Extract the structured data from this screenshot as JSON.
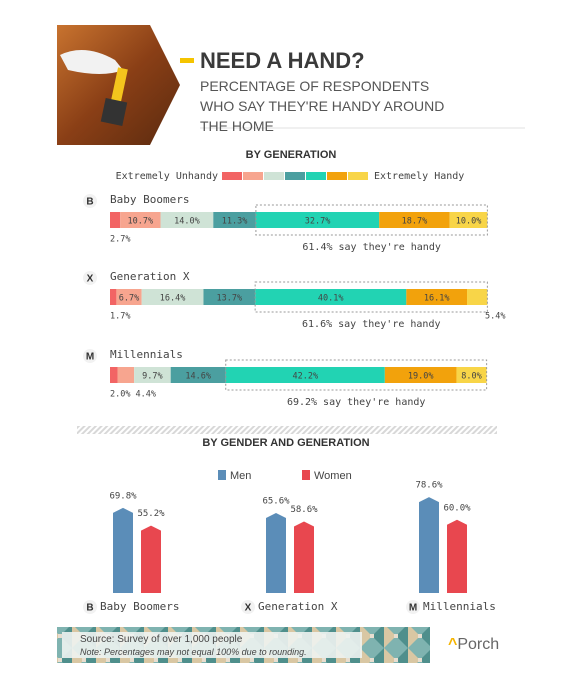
{
  "header": {
    "title": "NEED A HAND?",
    "subtitle": "PERCENTAGE OF RESPONDENTS WHO SAY THEY'RE HANDY AROUND THE HOME"
  },
  "chart_data": [
    {
      "type": "stacked-bar",
      "title": "BY GENERATION",
      "legend_low": "Extremely Unhandy",
      "legend_high": "Extremely Handy",
      "categories": [
        "Baby Boomers",
        "Generation X",
        "Millennials"
      ],
      "category_icons": [
        "B",
        "X",
        "M"
      ],
      "series": [
        {
          "color": "#f26464",
          "values": [
            2.7,
            1.7,
            2.0
          ],
          "value_labels": [
            "2.7%",
            "1.7%",
            "2.0%"
          ]
        },
        {
          "color": "#f7a58f",
          "values": [
            10.7,
            6.7,
            4.4
          ],
          "value_labels": [
            "10.7%",
            "6.7%",
            "4.4%"
          ]
        },
        {
          "color": "#cfe3d6",
          "values": [
            14.0,
            16.4,
            9.7
          ],
          "value_labels": [
            "14.0%",
            "16.4%",
            "9.7%"
          ]
        },
        {
          "color": "#4b9fa0",
          "values": [
            11.3,
            13.7,
            14.6
          ],
          "value_labels": [
            "11.3%",
            "13.7%",
            "14.6%"
          ]
        },
        {
          "color": "#22d3b3",
          "values": [
            32.7,
            40.1,
            42.2
          ],
          "value_labels": [
            "32.7%",
            "40.1%",
            "42.2%"
          ]
        },
        {
          "color": "#f2a20c",
          "values": [
            18.7,
            16.1,
            19.0
          ],
          "value_labels": [
            "18.7%",
            "16.1%",
            "19.0%"
          ]
        },
        {
          "color": "#f8d548",
          "values": [
            10.0,
            5.4,
            8.0
          ],
          "value_labels": [
            "10.0%",
            "5.4%",
            "8.0%"
          ]
        }
      ],
      "handy_labels": [
        "61.4% say they're handy",
        "61.6% say they're handy",
        "69.2% say they're handy"
      ]
    },
    {
      "type": "grouped-bar",
      "title": "BY GENDER AND GENERATION",
      "categories": [
        "Baby Boomers",
        "Generation X",
        "Millennials"
      ],
      "category_icons": [
        "B",
        "X",
        "M"
      ],
      "series": [
        {
          "name": "Men",
          "color": "#5b8db8",
          "values": [
            69.8,
            65.6,
            78.6
          ],
          "value_labels": [
            "69.8%",
            "65.6%",
            "78.6%"
          ]
        },
        {
          "name": "Women",
          "color": "#e8474f",
          "values": [
            55.2,
            58.6,
            60.0
          ],
          "value_labels": [
            "55.2%",
            "58.6%",
            "60.0%"
          ]
        }
      ]
    }
  ],
  "footer": {
    "source": "Source: Survey of over 1,000 people",
    "note": "Note: Percentages may not equal 100% due to rounding.",
    "brand": "Porch"
  }
}
